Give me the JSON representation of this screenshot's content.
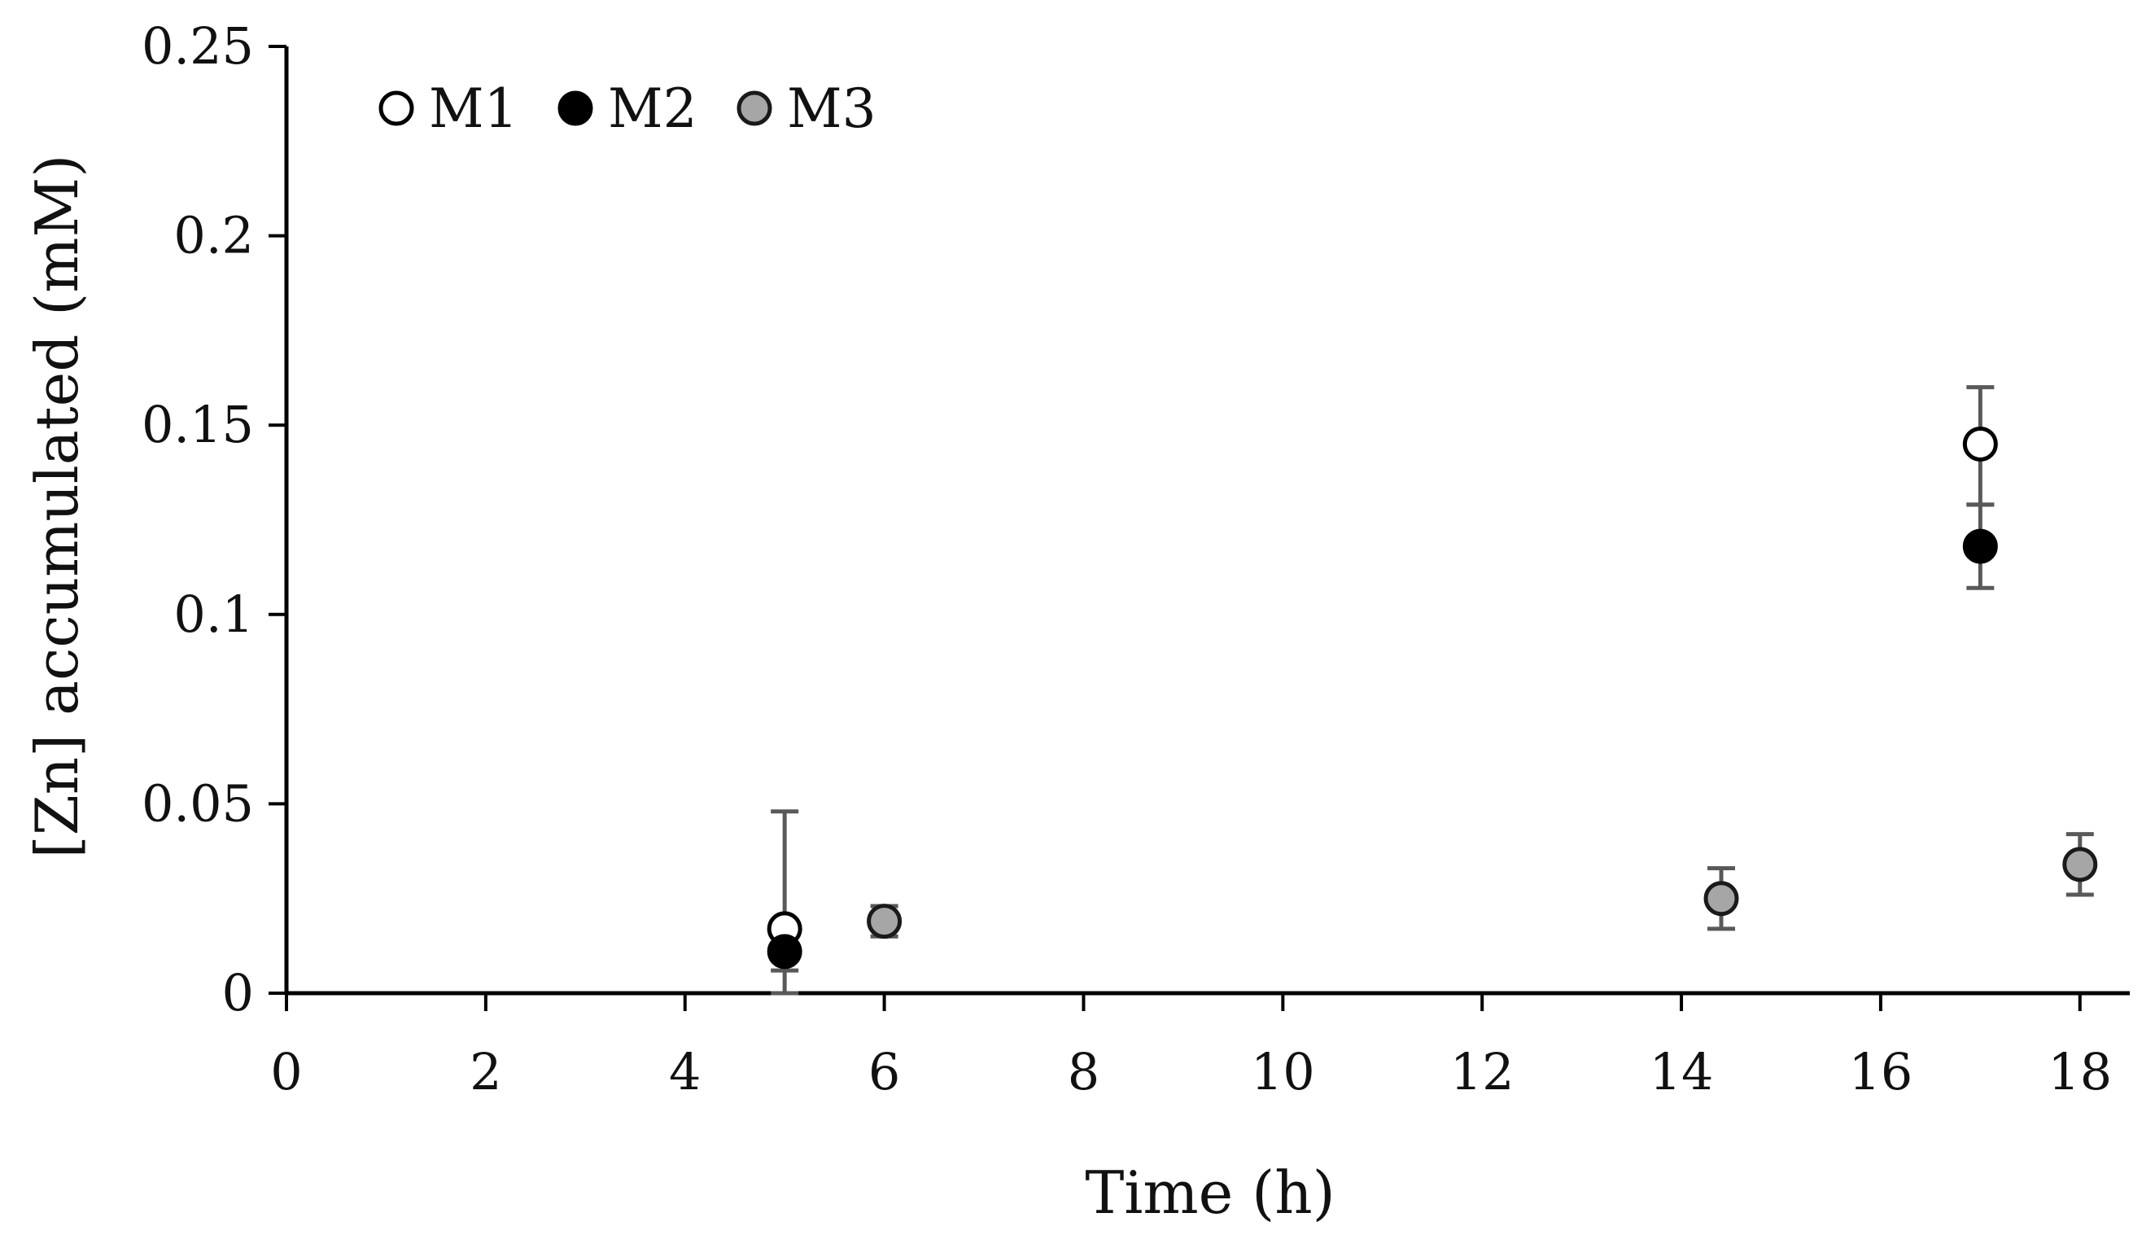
{
  "chart_data": {
    "type": "scatter",
    "title": "",
    "xlabel": "Time (h)",
    "ylabel": "[Zn] accumulated (mM)",
    "xlim": [
      0,
      18.5
    ],
    "ylim": [
      0,
      0.25
    ],
    "x_ticks": [
      0,
      2,
      4,
      6,
      8,
      10,
      12,
      14,
      16,
      18
    ],
    "x_tick_labels": [
      "0",
      "2",
      "4",
      "6",
      "8",
      "10",
      "12",
      "14",
      "16",
      "18"
    ],
    "y_ticks": [
      0,
      0.05,
      0.1,
      0.15,
      0.2,
      0.25
    ],
    "y_tick_labels": [
      "0",
      "0.05",
      "0.1",
      "0.15",
      "0.2",
      "0.25"
    ],
    "grid": false,
    "legend_position": "top-left",
    "series": [
      {
        "name": "M1",
        "marker_fill": "#ffffff",
        "marker_stroke": "#000000",
        "points": [
          {
            "x": 5,
            "y": 0.017,
            "err_low": 0.017,
            "err_high": 0.031
          },
          {
            "x": 17,
            "y": 0.145,
            "err_low": 0.016,
            "err_high": 0.015
          }
        ]
      },
      {
        "name": "M2",
        "marker_fill": "#000000",
        "marker_stroke": "#000000",
        "points": [
          {
            "x": 5,
            "y": 0.011,
            "err_low": 0.005,
            "err_high": 0.0
          },
          {
            "x": 17,
            "y": 0.118,
            "err_low": 0.011,
            "err_high": 0.011
          }
        ]
      },
      {
        "name": "M3",
        "marker_fill": "#a6a6a6",
        "marker_stroke": "#1a1a1a",
        "points": [
          {
            "x": 6,
            "y": 0.019,
            "err_low": 0.004,
            "err_high": 0.004
          },
          {
            "x": 14.4,
            "y": 0.025,
            "err_low": 0.008,
            "err_high": 0.008
          },
          {
            "x": 18,
            "y": 0.034,
            "err_low": 0.008,
            "err_high": 0.008
          }
        ]
      }
    ],
    "colors": {
      "axis": "#000000",
      "error_bar": "#595959"
    }
  }
}
